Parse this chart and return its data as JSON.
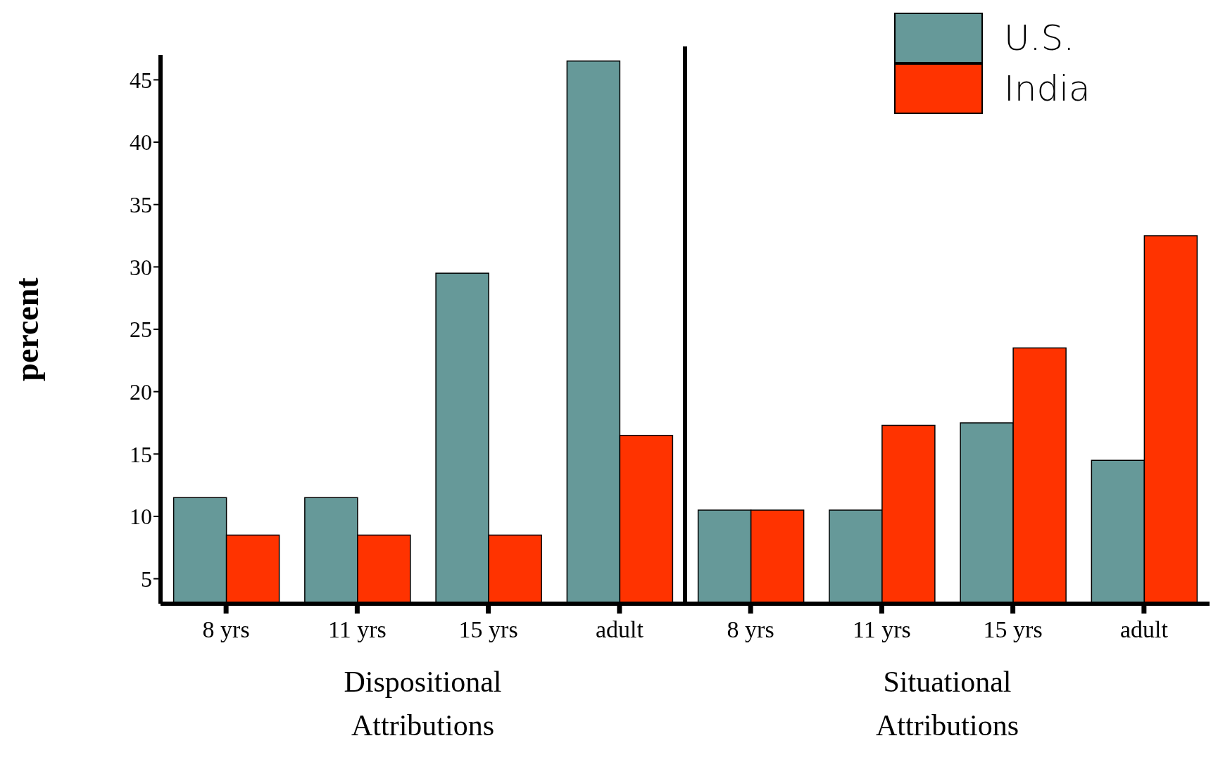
{
  "chart_data": {
    "type": "bar",
    "ylabel": "percent",
    "categories": [
      "8 yrs",
      "11 yrs",
      "15 yrs",
      "adult",
      "8 yrs",
      "11 yrs",
      "15 yrs",
      "adult"
    ],
    "series": [
      {
        "name": "U.S.",
        "color": "#669999",
        "values": [
          11.5,
          11.5,
          29.5,
          46.5,
          10.5,
          10.5,
          17.5,
          14.5
        ]
      },
      {
        "name": "India",
        "color": "#ff3300",
        "values": [
          8.5,
          8.5,
          8.5,
          16.5,
          10.5,
          17.3,
          23.5,
          32.5
        ]
      }
    ],
    "ylim": [
      3,
      47
    ],
    "yticks": [
      5,
      10,
      15,
      20,
      25,
      30,
      35,
      40,
      45
    ],
    "annotations": [
      "Dispositional Attributions",
      "Situational Attributions"
    ],
    "grid": false,
    "legend": "top right"
  }
}
